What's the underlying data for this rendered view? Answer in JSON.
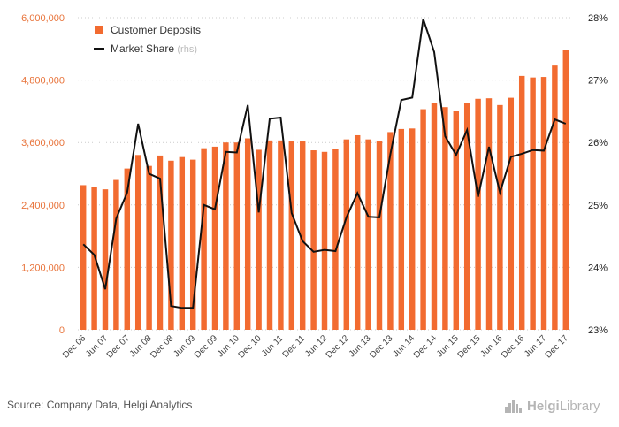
{
  "chart_data": {
    "type": "bar+line",
    "categories": [
      "Dec 06",
      "Mar 07",
      "Jun 07",
      "Sep 07",
      "Dec 07",
      "Mar 08",
      "Jun 08",
      "Sep 08",
      "Dec 08",
      "Mar 09",
      "Jun 09",
      "Sep 09",
      "Dec 09",
      "Mar 10",
      "Jun 10",
      "Sep 10",
      "Dec 10",
      "Mar 11",
      "Jun 11",
      "Sep 11",
      "Dec 11",
      "Mar 12",
      "Jun 12",
      "Sep 12",
      "Dec 12",
      "Mar 13",
      "Jun 13",
      "Sep 13",
      "Dec 13",
      "Mar 14",
      "Jun 14",
      "Sep 14",
      "Dec 14",
      "Mar 15",
      "Jun 15",
      "Sep 15",
      "Dec 15",
      "Mar 16",
      "Jun 16",
      "Sep 16",
      "Dec 16",
      "Mar 17",
      "Jun 17",
      "Sep 17",
      "Dec 17"
    ],
    "x_tick_labels": [
      "Dec 06",
      "Jun 07",
      "Dec 07",
      "Jun 08",
      "Dec 08",
      "Jun 09",
      "Dec 09",
      "Jun 10",
      "Dec 10",
      "Jun 11",
      "Dec 11",
      "Jun 12",
      "Dec 12",
      "Jun 13",
      "Dec 13",
      "Jun 14",
      "Dec 14",
      "Jun 15",
      "Dec 15",
      "Jun 16",
      "Dec 16",
      "Jun 17",
      "Dec 17"
    ],
    "series": [
      {
        "name": "Customer Deposits",
        "type": "bar",
        "axis": "left",
        "color": "#f26b30",
        "values": [
          2780000,
          2740000,
          2700000,
          2880000,
          3100000,
          3360000,
          3150000,
          3350000,
          3250000,
          3320000,
          3270000,
          3490000,
          3520000,
          3600000,
          3600000,
          3680000,
          3460000,
          3640000,
          3640000,
          3620000,
          3620000,
          3450000,
          3420000,
          3470000,
          3660000,
          3740000,
          3660000,
          3620000,
          3800000,
          3860000,
          3870000,
          4240000,
          4360000,
          4280000,
          4200000,
          4360000,
          4440000,
          4450000,
          4320000,
          4460000,
          4880000,
          4850000,
          4860000,
          5080000,
          5380000
        ]
      },
      {
        "name": "Market Share",
        "suffix": "(rhs)",
        "type": "line",
        "axis": "right",
        "color": "#111111",
        "values": [
          24.37,
          24.2,
          23.65,
          24.78,
          25.2,
          26.3,
          25.5,
          25.42,
          23.38,
          23.35,
          23.35,
          25.0,
          24.93,
          25.85,
          25.84,
          26.6,
          24.88,
          26.38,
          26.4,
          24.87,
          24.42,
          24.25,
          24.28,
          24.26,
          24.8,
          25.19,
          24.81,
          24.8,
          25.81,
          26.68,
          26.72,
          27.98,
          27.45,
          26.1,
          25.8,
          26.2,
          25.13,
          25.93,
          25.2,
          25.77,
          25.82,
          25.88,
          25.87,
          26.37,
          26.3
        ]
      }
    ],
    "y_left": {
      "min": 0,
      "max": 6000000,
      "ticks": [
        0,
        1200000,
        2400000,
        3600000,
        4800000,
        6000000
      ],
      "tick_labels": [
        "0",
        "1,200,000",
        "2,400,000",
        "3,600,000",
        "4,800,000",
        "6,000,000"
      ]
    },
    "y_right": {
      "min": 23,
      "max": 28,
      "ticks": [
        23,
        24,
        25,
        26,
        27,
        28
      ],
      "tick_labels": [
        "23%",
        "24%",
        "25%",
        "26%",
        "27%",
        "28%"
      ]
    },
    "legend": {
      "placement": "top-left"
    },
    "grid": "horizontal-dotted"
  },
  "legend": {
    "bar_label": "Customer Deposits",
    "line_label": "Market Share",
    "line_suffix": "(rhs)"
  },
  "source_text": "Source: Company Data, Helgi Analytics",
  "brand": {
    "part1": "Helgi",
    "part2": "Library"
  },
  "colors": {
    "bar": "#f26b30",
    "line": "#111111",
    "left_axis": "#e8733a",
    "grid": "#cccccc"
  }
}
